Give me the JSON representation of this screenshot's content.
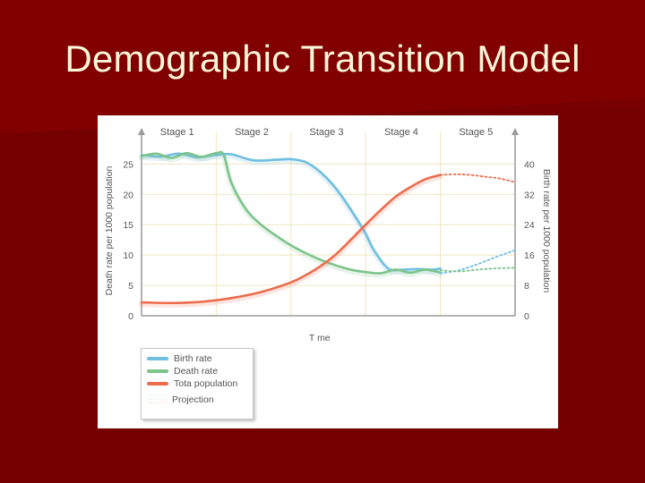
{
  "slide": {
    "title": "Demographic Transition Model"
  },
  "colors": {
    "background": "#7a0000",
    "title": "#fbf6d9",
    "birth_rate": "#6fbfe0",
    "death_rate": "#7cc48a",
    "total_population": "#ec6c4c"
  },
  "chart_data": {
    "type": "line",
    "stages": [
      "Stage 1",
      "Stage 2",
      "Stage 3",
      "Stage 4",
      "Stage 5"
    ],
    "xlabel": "T me",
    "ylabel_left": "Death rate per 1000 population",
    "ylabel_right": "Birth rate per 1000 population",
    "y_left_ticks": [
      "0",
      "5",
      "10",
      "15",
      "20",
      "25"
    ],
    "y_right_ticks": [
      "0",
      "8",
      "16",
      "24",
      "32",
      "40"
    ],
    "ylim_left": [
      0,
      28
    ],
    "x_range_stages": [
      0,
      5
    ],
    "grid": true,
    "legend_position": "bottom-left",
    "series": [
      {
        "name": "Birth rate",
        "axis": "left",
        "x": [
          0,
          0.25,
          0.5,
          0.75,
          1.0,
          1.2,
          1.5,
          1.8,
          2.0,
          2.2,
          2.4,
          2.6,
          2.8,
          3.0,
          3.1,
          3.3,
          3.5,
          3.7,
          3.9,
          4.0
        ],
        "values": [
          26.5,
          26.2,
          26.7,
          26.1,
          26.5,
          26.6,
          25.6,
          25.7,
          25.8,
          25.3,
          23.6,
          21.0,
          17.5,
          13.5,
          11.0,
          7.8,
          7.6,
          7.7,
          7.6,
          7.8
        ]
      },
      {
        "name": "Death rate",
        "axis": "left",
        "x": [
          0,
          0.2,
          0.4,
          0.6,
          0.8,
          1.0,
          1.1,
          1.2,
          1.4,
          1.6,
          1.8,
          2.0,
          2.2,
          2.4,
          2.6,
          2.8,
          3.0,
          3.2,
          3.4,
          3.6,
          3.8,
          4.0
        ],
        "values": [
          26.3,
          26.7,
          26.0,
          26.8,
          26.2,
          26.8,
          26.5,
          22.0,
          17.5,
          15.0,
          13.2,
          11.6,
          10.3,
          9.2,
          8.3,
          7.6,
          7.2,
          7.0,
          7.6,
          7.1,
          7.6,
          7.1
        ]
      },
      {
        "name": "Tota  population",
        "axis": "left",
        "x": [
          0,
          0.4,
          0.8,
          1.2,
          1.6,
          2.0,
          2.2,
          2.4,
          2.6,
          2.8,
          3.0,
          3.2,
          3.4,
          3.6,
          3.8,
          4.0
        ],
        "values": [
          2.2,
          2.1,
          2.3,
          2.9,
          3.9,
          5.5,
          6.7,
          8.2,
          10.1,
          12.5,
          15.0,
          17.4,
          19.6,
          21.2,
          22.5,
          23.2
        ]
      },
      {
        "name": "Projection",
        "axis": "left",
        "dashed": true,
        "x": [
          4.0,
          4.2,
          4.4,
          4.6,
          4.8,
          5.0
        ],
        "values": [
          23.2,
          23.3,
          23.2,
          22.9,
          22.6,
          22.0
        ]
      },
      {
        "name": "Projection",
        "axis": "left",
        "dashed": true,
        "x": [
          4.0,
          4.25,
          4.5,
          4.75,
          5.0
        ],
        "values": [
          7.0,
          7.5,
          8.5,
          9.7,
          10.8
        ]
      },
      {
        "name": "Projection",
        "axis": "left",
        "dashed": true,
        "x": [
          4.0,
          4.25,
          4.5,
          4.75,
          5.0
        ],
        "values": [
          7.5,
          7.3,
          7.6,
          7.8,
          7.9
        ]
      }
    ],
    "legend": [
      "Birth rate",
      "Death rate",
      "Tota  population",
      "Projection"
    ]
  }
}
